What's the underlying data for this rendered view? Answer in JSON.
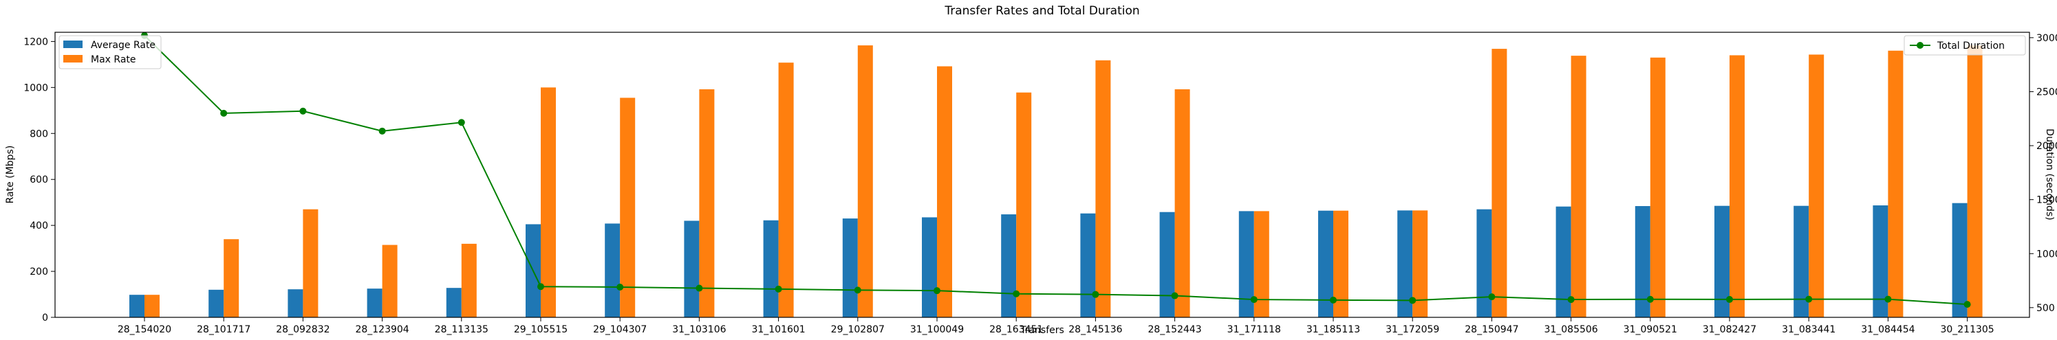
{
  "chart_data": {
    "type": "bar",
    "title": "Transfer Rates and Total Duration",
    "xlabel": "Transfers",
    "ylabel": "Rate (Mbps)",
    "y2label": "Duration (seconds)",
    "ylim": [
      0,
      1240
    ],
    "y2lim": [
      410,
      3050
    ],
    "yticks": [
      0,
      200,
      400,
      600,
      800,
      1000,
      1200
    ],
    "y2ticks": [
      500,
      1000,
      1500,
      2000,
      2500,
      3000
    ],
    "grid": false,
    "categories": [
      "28_154020",
      "28_101717",
      "28_092832",
      "28_123904",
      "28_113135",
      "29_105515",
      "29_104307",
      "31_103106",
      "31_101601",
      "29_102807",
      "31_100049",
      "28_163451",
      "28_145136",
      "28_152443",
      "31_171118",
      "31_185113",
      "31_172059",
      "28_150947",
      "31_085506",
      "31_090521",
      "31_082427",
      "31_083441",
      "31_084454",
      "30_211305"
    ],
    "series": [
      {
        "name": "Average Rate",
        "type": "bar",
        "axis": "left",
        "color": "#1f77b4",
        "values": [
          98,
          120,
          122,
          125,
          128,
          405,
          408,
          420,
          422,
          430,
          435,
          448,
          452,
          458,
          462,
          464,
          465,
          470,
          482,
          484,
          485,
          485,
          487,
          497
        ]
      },
      {
        "name": "Max Rate",
        "type": "bar",
        "axis": "left",
        "color": "#ff7f0e",
        "values": [
          98,
          340,
          470,
          315,
          320,
          1000,
          955,
          992,
          1108,
          1183,
          1092,
          978,
          1118,
          992,
          462,
          464,
          465,
          1168,
          1138,
          1130,
          1140,
          1143,
          1160,
          1183
        ]
      },
      {
        "name": "Total Duration",
        "type": "line",
        "axis": "right",
        "color": "#008000",
        "values": [
          3020,
          2300,
          2320,
          2135,
          2215,
          695,
          690,
          680,
          672,
          662,
          657,
          628,
          622,
          610,
          575,
          570,
          567,
          600,
          575,
          577,
          576,
          578,
          578,
          530
        ]
      }
    ],
    "legend_left": {
      "placement": "upper-left",
      "entries": [
        "Average Rate",
        "Max Rate"
      ]
    },
    "legend_right": {
      "placement": "upper-right",
      "entries": [
        "Total Duration"
      ]
    }
  }
}
